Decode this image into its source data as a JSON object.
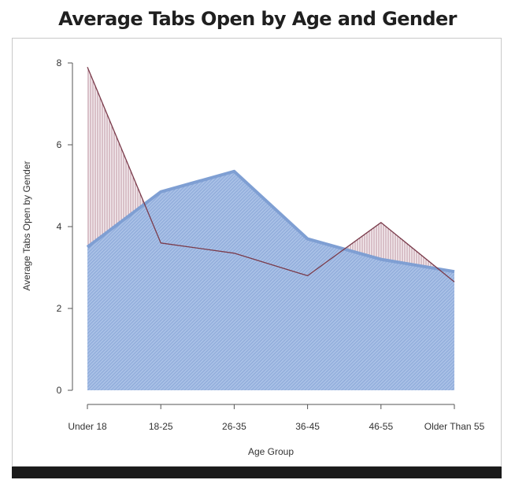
{
  "chart_data": {
    "type": "area",
    "title": "Average Tabs Open by Age and Gender",
    "xlabel": "Age Group",
    "ylabel": "Average Tabs Open by Gender",
    "categories": [
      "Under 18",
      "18-25",
      "26-35",
      "36-45",
      "46-55",
      "Older Than 55"
    ],
    "ylim": [
      0,
      8
    ],
    "yticks": [
      "0",
      "2",
      "4",
      "6",
      "8"
    ],
    "series": [
      {
        "values": [
          3.5,
          4.85,
          5.35,
          3.7,
          3.2,
          2.9
        ],
        "color": "#7f9fd3"
      },
      {
        "values": [
          7.9,
          3.6,
          3.35,
          2.8,
          4.1,
          2.65
        ],
        "color": "#7a3b4b"
      }
    ],
    "grid": false,
    "legend": "none"
  }
}
